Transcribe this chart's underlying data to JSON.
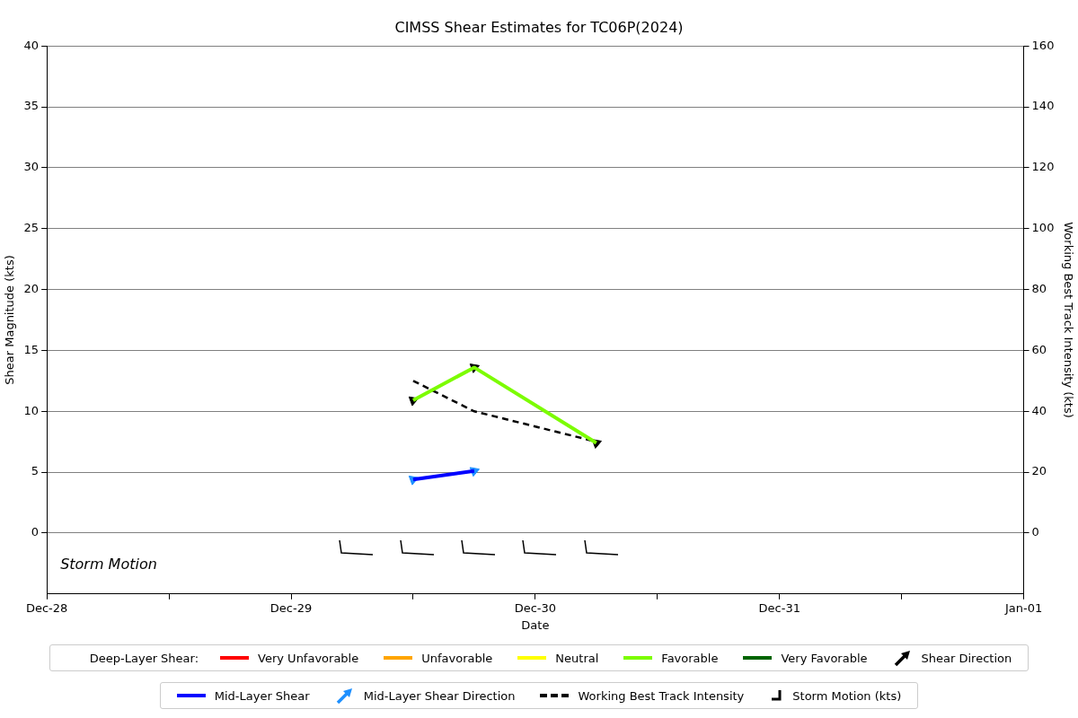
{
  "chart_data": {
    "type": "line",
    "title": "CIMSS Shear Estimates for TC06P(2024)",
    "xlabel": "Date",
    "ylabel": "Shear Magnitude (kts)",
    "y2label": "Working Best Track Intensity (kts)",
    "legend_title": "Deep-Layer Shear:",
    "xlim": [
      "2024-12-28",
      "2025-01-01"
    ],
    "xticks": [
      {
        "value": "2024-12-28",
        "label": "Dec-28"
      },
      {
        "value": "2024-12-28T12:00",
        "label": null
      },
      {
        "value": "2024-12-29",
        "label": "Dec-29"
      },
      {
        "value": "2024-12-29T12:00",
        "label": null
      },
      {
        "value": "2024-12-30",
        "label": "Dec-30"
      },
      {
        "value": "2024-12-30T12:00",
        "label": null
      },
      {
        "value": "2024-12-31",
        "label": "Dec-31"
      },
      {
        "value": "2024-12-31T12:00",
        "label": null
      },
      {
        "value": "2025-01-01",
        "label": "Jan-01"
      }
    ],
    "ylim": [
      -5,
      40
    ],
    "yticks": [
      0,
      5,
      10,
      15,
      20,
      25,
      30,
      35,
      40
    ],
    "y2lim": [
      -20,
      160
    ],
    "y2ticks": [
      0,
      20,
      40,
      60,
      80,
      100,
      120,
      140,
      160
    ],
    "grid": "y",
    "legend": "bottom",
    "annotations": [
      "Storm Motion"
    ],
    "series": [
      {
        "name": "Very Unfavorable",
        "color": "#ff0000",
        "marker": "none"
      },
      {
        "name": "Unfavorable",
        "color": "#ffa500",
        "marker": "none"
      },
      {
        "name": "Neutral",
        "color": "#ffff00",
        "marker": "none"
      },
      {
        "name": "Favorable",
        "color": "#7cfc00",
        "x": [
          "2024-12-29T12:00",
          "2024-12-29T18:00",
          "2024-12-30T06:00"
        ],
        "values": [
          10.9,
          13.6,
          7.4
        ],
        "marker": "none"
      },
      {
        "name": "Very Favorable",
        "color": "#006400",
        "marker": "none"
      },
      {
        "name": "Shear Direction",
        "type": "scatter",
        "color": "#000000",
        "x": [
          "2024-12-29T12:00",
          "2024-12-29T18:00",
          "2024-12-30T06:00"
        ],
        "values": [
          10.9,
          13.6,
          7.4
        ],
        "marker": "triangle"
      },
      {
        "name": "Mid-Layer Shear",
        "color": "#0000ff",
        "x": [
          "2024-12-29T12:00",
          "2024-12-29T18:00"
        ],
        "values": [
          4.4,
          5.1
        ],
        "marker": "none"
      },
      {
        "name": "Mid-Layer Shear Direction",
        "type": "scatter",
        "color": "#1e90ff",
        "x": [
          "2024-12-29T12:00",
          "2024-12-29T18:00"
        ],
        "values": [
          4.4,
          5.1
        ],
        "marker": "triangle"
      },
      {
        "name": "Working Best Track Intensity",
        "color": "#000000",
        "axis": "y2",
        "line_style": "dashed",
        "x": [
          "2024-12-29T12:00",
          "2024-12-29T18:00",
          "2024-12-30T06:00"
        ],
        "values": [
          50,
          40,
          30
        ],
        "marker": "none"
      },
      {
        "name": "Storm Motion (kts)",
        "type": "scatter",
        "color": "#000000"
      }
    ]
  }
}
